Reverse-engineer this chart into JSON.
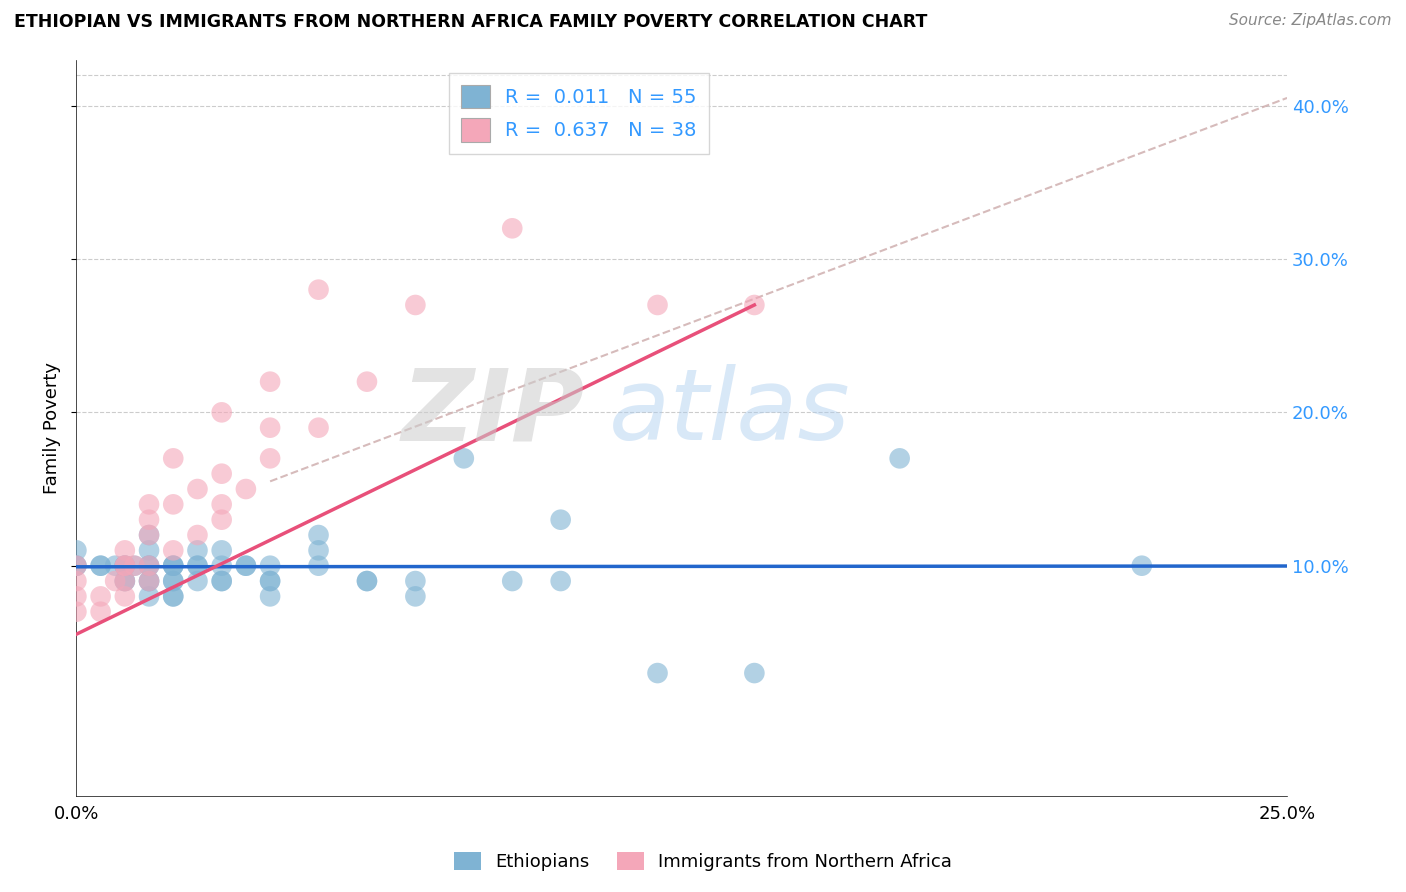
{
  "title": "ETHIOPIAN VS IMMIGRANTS FROM NORTHERN AFRICA FAMILY POVERTY CORRELATION CHART",
  "source": "Source: ZipAtlas.com",
  "ylabel": "Family Poverty",
  "xlim": [
    0.0,
    0.25
  ],
  "ylim": [
    -0.05,
    0.43
  ],
  "yticks": [
    0.1,
    0.2,
    0.3,
    0.4
  ],
  "ytick_labels": [
    "10.0%",
    "20.0%",
    "30.0%",
    "40.0%"
  ],
  "xticks": [
    0.0,
    0.05,
    0.1,
    0.15,
    0.2,
    0.25
  ],
  "xtick_labels": [
    "0.0%",
    "",
    "",
    "",
    "",
    "25.0%"
  ],
  "blue_color": "#7fb3d3",
  "pink_color": "#f4a7b9",
  "blue_line_color": "#2266cc",
  "pink_line_color": "#e8507a",
  "dashed_line_color": "#ccaaaa",
  "grid_color": "#cccccc",
  "watermark_zip": "ZIP",
  "watermark_atlas": "atlas",
  "ethiopian_x": [
    0.0,
    0.0,
    0.0,
    0.005,
    0.005,
    0.008,
    0.01,
    0.01,
    0.01,
    0.01,
    0.01,
    0.012,
    0.015,
    0.015,
    0.015,
    0.015,
    0.015,
    0.015,
    0.015,
    0.02,
    0.02,
    0.02,
    0.02,
    0.02,
    0.02,
    0.02,
    0.025,
    0.025,
    0.025,
    0.025,
    0.03,
    0.03,
    0.03,
    0.03,
    0.035,
    0.035,
    0.04,
    0.04,
    0.04,
    0.04,
    0.05,
    0.05,
    0.05,
    0.06,
    0.06,
    0.07,
    0.07,
    0.08,
    0.09,
    0.1,
    0.1,
    0.12,
    0.14,
    0.17,
    0.22
  ],
  "ethiopian_y": [
    0.1,
    0.1,
    0.11,
    0.1,
    0.1,
    0.1,
    0.09,
    0.09,
    0.1,
    0.1,
    0.1,
    0.1,
    0.08,
    0.09,
    0.09,
    0.1,
    0.1,
    0.11,
    0.12,
    0.08,
    0.08,
    0.09,
    0.09,
    0.1,
    0.1,
    0.1,
    0.09,
    0.1,
    0.1,
    0.11,
    0.09,
    0.09,
    0.1,
    0.11,
    0.1,
    0.1,
    0.08,
    0.09,
    0.09,
    0.1,
    0.1,
    0.11,
    0.12,
    0.09,
    0.09,
    0.08,
    0.09,
    0.17,
    0.09,
    0.09,
    0.13,
    0.03,
    0.03,
    0.17,
    0.1
  ],
  "northern_africa_x": [
    0.0,
    0.0,
    0.0,
    0.0,
    0.005,
    0.005,
    0.008,
    0.01,
    0.01,
    0.01,
    0.01,
    0.01,
    0.012,
    0.015,
    0.015,
    0.015,
    0.015,
    0.015,
    0.02,
    0.02,
    0.02,
    0.025,
    0.025,
    0.03,
    0.03,
    0.03,
    0.03,
    0.035,
    0.04,
    0.04,
    0.04,
    0.05,
    0.05,
    0.06,
    0.07,
    0.09,
    0.12,
    0.14
  ],
  "northern_africa_y": [
    0.07,
    0.08,
    0.09,
    0.1,
    0.07,
    0.08,
    0.09,
    0.08,
    0.09,
    0.1,
    0.1,
    0.11,
    0.1,
    0.09,
    0.1,
    0.12,
    0.13,
    0.14,
    0.11,
    0.14,
    0.17,
    0.12,
    0.15,
    0.13,
    0.14,
    0.16,
    0.2,
    0.15,
    0.17,
    0.19,
    0.22,
    0.19,
    0.28,
    0.22,
    0.27,
    0.32,
    0.27,
    0.27
  ]
}
